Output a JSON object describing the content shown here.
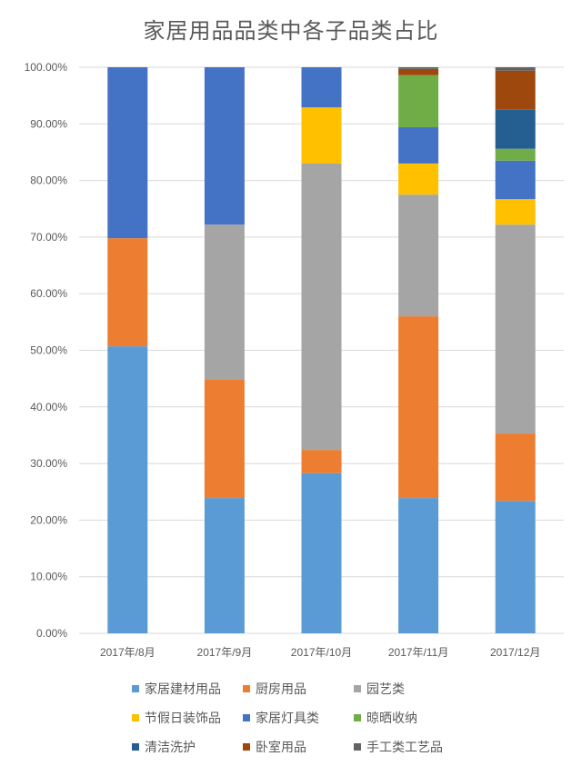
{
  "chart_data": {
    "type": "bar",
    "stacked": true,
    "title": "家居用品品类中各子品类占比",
    "xlabel": "",
    "ylabel": "",
    "ylim": [
      0,
      100
    ],
    "yticks": [
      "0.00%",
      "10.00%",
      "20.00%",
      "30.00%",
      "40.00%",
      "50.00%",
      "60.00%",
      "70.00%",
      "80.00%",
      "90.00%",
      "100.00%"
    ],
    "grid": true,
    "legend_position": "bottom",
    "categories": [
      "2017年/8月",
      "2017年/9月",
      "2017年/10月",
      "2017年/11月",
      "2017/12月"
    ],
    "series": [
      {
        "name": "家居建材用品",
        "color": "#5B9BD5",
        "values": [
          50.7,
          23.9,
          28.3,
          23.9,
          23.4
        ]
      },
      {
        "name": "厨房用品",
        "color": "#ED7D31",
        "values": [
          19.1,
          21.0,
          4.1,
          32.1,
          11.9
        ]
      },
      {
        "name": "园艺类",
        "color": "#A5A5A5",
        "values": [
          0,
          27.3,
          50.6,
          21.5,
          36.9
        ]
      },
      {
        "name": "节假日装饰品",
        "color": "#FFC000",
        "values": [
          0,
          0,
          9.9,
          5.5,
          4.5
        ]
      },
      {
        "name": "家居灯具类",
        "color": "#4472C4",
        "values": [
          30.2,
          27.8,
          7.1,
          6.4,
          6.8
        ]
      },
      {
        "name": "晾晒收纳",
        "color": "#70AD47",
        "values": [
          0,
          0,
          0,
          9.2,
          2.1
        ]
      },
      {
        "name": "清洁洗护",
        "color": "#255E91",
        "values": [
          0,
          0,
          0,
          0,
          6.9
        ]
      },
      {
        "name": "卧室用品",
        "color": "#9E480E",
        "values": [
          0,
          0,
          0,
          1.1,
          6.9
        ]
      },
      {
        "name": "手工类工艺品",
        "color": "#636363",
        "values": [
          0,
          0,
          0,
          0.3,
          0.6
        ]
      }
    ]
  }
}
